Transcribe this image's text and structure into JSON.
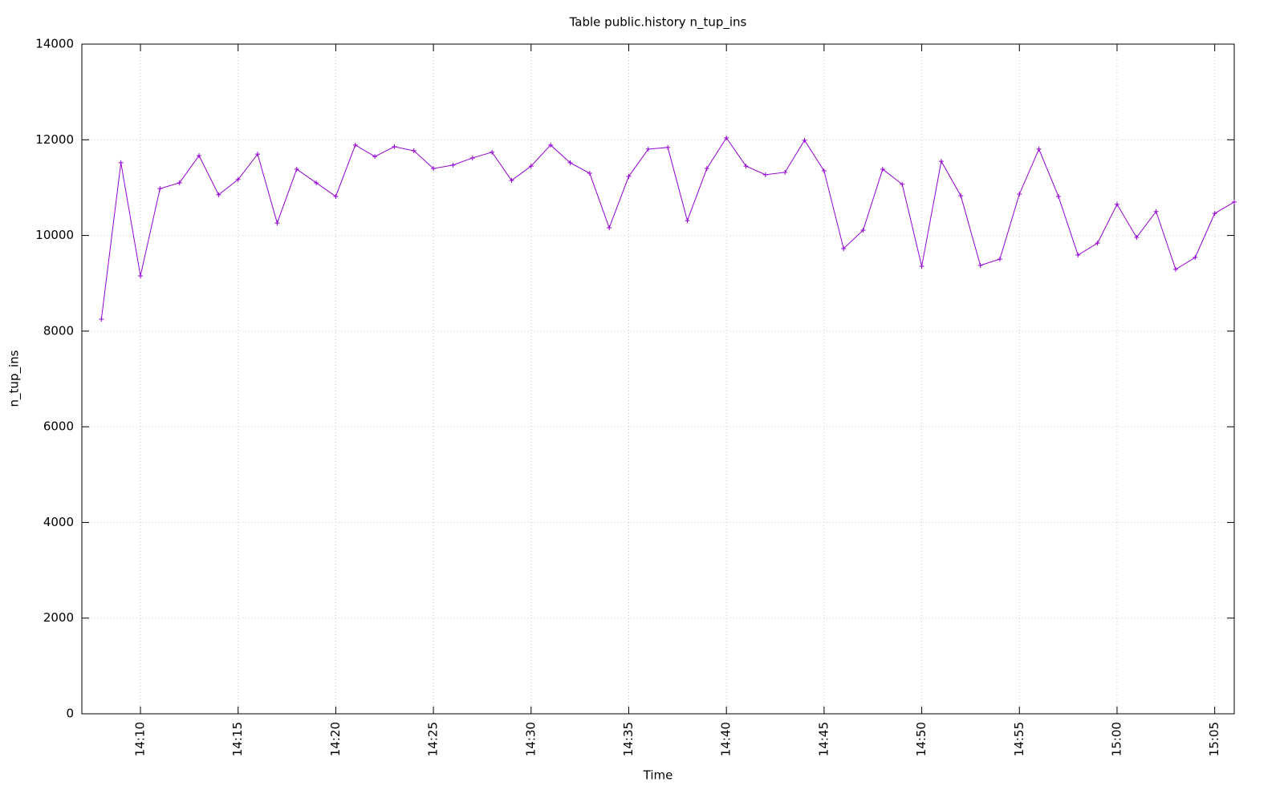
{
  "chart_data": {
    "type": "line",
    "title": "Table public.history n_tup_ins",
    "x_label": "Time",
    "y_label": "n_tup_ins",
    "x": [
      "14:08",
      "14:09",
      "14:10",
      "14:11",
      "14:12",
      "14:13",
      "14:14",
      "14:15",
      "14:16",
      "14:17",
      "14:18",
      "14:19",
      "14:20",
      "14:21",
      "14:22",
      "14:23",
      "14:24",
      "14:25",
      "14:26",
      "14:27",
      "14:28",
      "14:29",
      "14:30",
      "14:31",
      "14:32",
      "14:33",
      "14:34",
      "14:35",
      "14:36",
      "14:37",
      "14:38",
      "14:39",
      "14:40",
      "14:41",
      "14:42",
      "14:43",
      "14:44",
      "14:45",
      "14:46",
      "14:47",
      "14:48",
      "14:49",
      "14:50",
      "14:51",
      "14:52",
      "14:53",
      "14:54",
      "14:55",
      "14:56",
      "14:57",
      "14:58",
      "14:59",
      "15:00",
      "15:01",
      "15:02",
      "15:03",
      "15:04",
      "15:05",
      "15:06"
    ],
    "series": [
      {
        "name": "n_tup_ins",
        "color": "#9400d3",
        "values": [
          8250,
          11520,
          9155,
          10980,
          11100,
          11670,
          10850,
          11170,
          11700,
          10260,
          11385,
          11100,
          10815,
          11890,
          11650,
          11855,
          11770,
          11400,
          11470,
          11620,
          11740,
          11150,
          11450,
          11890,
          11520,
          11300,
          10160,
          11235,
          11805,
          11840,
          10310,
          11400,
          12040,
          11450,
          11270,
          11320,
          11990,
          11350,
          9725,
          10110,
          11385,
          11070,
          9355,
          11550,
          10830,
          9375,
          9505,
          10865,
          11805,
          10815,
          9590,
          9840,
          10650,
          9960,
          10500,
          9290,
          9540,
          10460,
          10700
        ]
      }
    ],
    "xlim": [
      "14:07",
      "15:06"
    ],
    "xticks": [
      "14:10",
      "14:15",
      "14:20",
      "14:25",
      "14:30",
      "14:35",
      "14:40",
      "14:45",
      "14:50",
      "14:55",
      "15:00",
      "15:05"
    ],
    "ylim": [
      0,
      14000
    ],
    "yticks": [
      0,
      2000,
      4000,
      6000,
      8000,
      10000,
      12000,
      14000
    ],
    "grid": true,
    "legend": false
  }
}
